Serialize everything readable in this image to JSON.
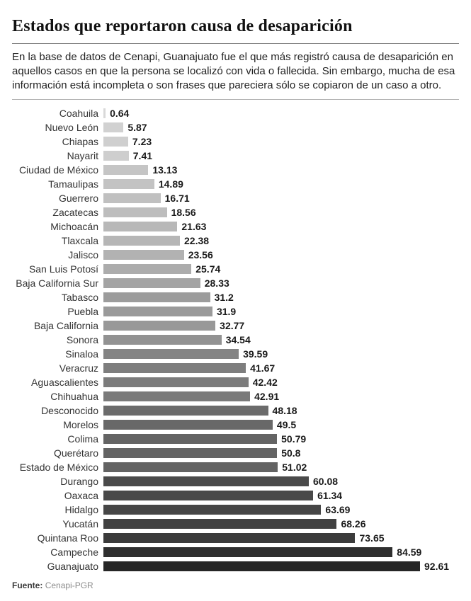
{
  "header": {
    "title": "Estados que reportaron causa de desaparición",
    "intro": "En la base de datos de Cenapi, Guanajuato fue el que más registró causa de desaparición en aquellos casos en que la persona se localizó con vida o fallecida. Sin embargo, mucha de esa información está incompleta o son frases que pareciera sólo se copiaron de un caso a otro."
  },
  "chart_data": {
    "type": "bar",
    "orientation": "horizontal",
    "title": "Estados que reportaron causa de desaparición",
    "xlabel": "",
    "ylabel": "",
    "xlim": [
      0,
      100
    ],
    "grid": false,
    "legend": "none",
    "value_labels_shown": true,
    "categories": [
      "Coahuila",
      "Nuevo León",
      "Chiapas",
      "Nayarit",
      "Ciudad de México",
      "Tamaulipas",
      "Guerrero",
      "Zacatecas",
      "Michoacán",
      "Tlaxcala",
      "Jalisco",
      "San Luis Potosí",
      "Baja California Sur",
      "Tabasco",
      "Puebla",
      "Baja California",
      "Sonora",
      "Sinaloa",
      "Veracruz",
      "Aguascalientes",
      "Chihuahua",
      "Desconocido",
      "Morelos",
      "Colima",
      "Querétaro",
      "Estado de México",
      "Durango",
      "Oaxaca",
      "Hidalgo",
      "Yucatán",
      "Quintana Roo",
      "Campeche",
      "Guanajuato"
    ],
    "values": [
      0.64,
      5.87,
      7.23,
      7.41,
      13.13,
      14.89,
      16.71,
      18.56,
      21.63,
      22.38,
      23.56,
      25.74,
      28.33,
      31.2,
      31.9,
      32.77,
      34.54,
      39.59,
      41.67,
      42.42,
      42.91,
      48.18,
      49.5,
      50.79,
      50.8,
      51.02,
      60.08,
      61.34,
      63.69,
      68.26,
      73.65,
      84.59,
      92.61
    ],
    "value_labels": [
      "0.64",
      "5.87",
      "7.23",
      "7.41",
      "13.13",
      "14.89",
      "16.71",
      "18.56",
      "21.63",
      "22.38",
      "23.56",
      "25.74",
      "28.33",
      "31.2",
      "31.9",
      "32.77",
      "34.54",
      "39.59",
      "41.67",
      "42.42",
      "42.91",
      "48.18",
      "49.5",
      "50.79",
      "50.8",
      "51.02",
      "60.08",
      "61.34",
      "63.69",
      "68.26",
      "73.65",
      "84.59",
      "92.61"
    ],
    "bar_colors": [
      "#d9d9d9",
      "#d1d1d1",
      "#cfcfcf",
      "#cecece",
      "#c5c5c5",
      "#c3c3c3",
      "#c0c0c0",
      "#bdbdbd",
      "#b8b8b8",
      "#b6b6b6",
      "#b2b2b2",
      "#acacac",
      "#a4a4a4",
      "#9c9c9c",
      "#9a9a9a",
      "#989898",
      "#929292",
      "#848484",
      "#7e7e7e",
      "#7c7c7c",
      "#7a7a7a",
      "#6b6b6b",
      "#686868",
      "#646464",
      "#646464",
      "#636363",
      "#4a4a4a",
      "#494949",
      "#464646",
      "#414141",
      "#3b3b3b",
      "#2f2f2f",
      "#262626"
    ],
    "color_scale": {
      "min_color": "#d9d9d9",
      "max_color": "#262626"
    },
    "category_label_color": "#333333",
    "value_label_color": "#1a1a1a"
  },
  "footer": {
    "source_label": "Fuente:",
    "source_value": "Cenapi-PGR"
  }
}
